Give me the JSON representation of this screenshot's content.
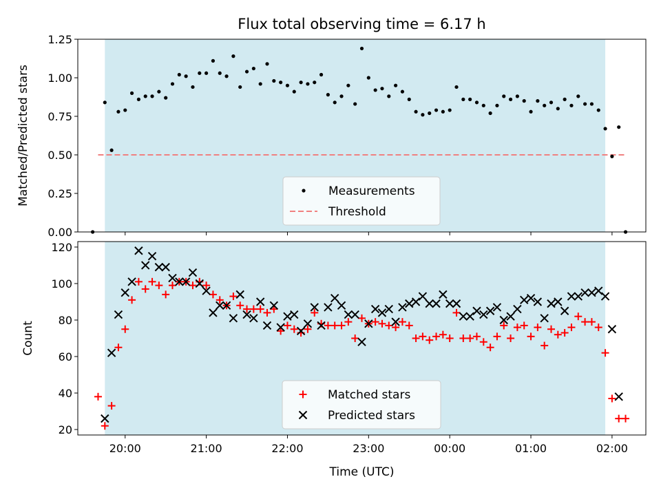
{
  "chart_data": [
    {
      "type": "scatter",
      "title": "Flux total observing time = 6.17 h",
      "xlabel": "",
      "ylabel": "Matched/Predicted stars",
      "xlim": [
        "19:25",
        "02:25"
      ],
      "ylim": [
        0,
        1.25
      ],
      "yticks": [
        "0.00",
        "0.25",
        "0.50",
        "0.75",
        "1.00",
        "1.25"
      ],
      "shaded_span": [
        "19:45",
        "01:55"
      ],
      "shade_color": "#add8e6",
      "legend_position": "lower center",
      "series": [
        {
          "name": "Measurements",
          "color": "#000000",
          "marker": "dot",
          "points": [
            [
              "19:36",
              0.0
            ],
            [
              "19:45",
              0.84
            ],
            [
              "19:50",
              0.53
            ],
            [
              "19:55",
              0.78
            ],
            [
              "20:00",
              0.79
            ],
            [
              "20:05",
              0.9
            ],
            [
              "20:10",
              0.86
            ],
            [
              "20:15",
              0.88
            ],
            [
              "20:20",
              0.88
            ],
            [
              "20:25",
              0.91
            ],
            [
              "20:30",
              0.87
            ],
            [
              "20:35",
              0.96
            ],
            [
              "20:40",
              1.02
            ],
            [
              "20:45",
              1.01
            ],
            [
              "20:50",
              0.94
            ],
            [
              "20:55",
              1.03
            ],
            [
              "21:00",
              1.03
            ],
            [
              "21:05",
              1.11
            ],
            [
              "21:10",
              1.03
            ],
            [
              "21:15",
              1.01
            ],
            [
              "21:20",
              1.14
            ],
            [
              "21:25",
              0.94
            ],
            [
              "21:30",
              1.04
            ],
            [
              "21:35",
              1.06
            ],
            [
              "21:40",
              0.96
            ],
            [
              "21:45",
              1.09
            ],
            [
              "21:50",
              0.98
            ],
            [
              "21:55",
              0.97
            ],
            [
              "22:00",
              0.95
            ],
            [
              "22:05",
              0.91
            ],
            [
              "22:10",
              0.97
            ],
            [
              "22:15",
              0.96
            ],
            [
              "22:20",
              0.97
            ],
            [
              "22:25",
              1.02
            ],
            [
              "22:30",
              0.89
            ],
            [
              "22:35",
              0.84
            ],
            [
              "22:40",
              0.88
            ],
            [
              "22:45",
              0.95
            ],
            [
              "22:50",
              0.83
            ],
            [
              "22:55",
              1.19
            ],
            [
              "23:00",
              1.0
            ],
            [
              "23:05",
              0.92
            ],
            [
              "23:10",
              0.93
            ],
            [
              "23:15",
              0.88
            ],
            [
              "23:20",
              0.95
            ],
            [
              "23:25",
              0.91
            ],
            [
              "23:30",
              0.86
            ],
            [
              "23:35",
              0.78
            ],
            [
              "23:40",
              0.76
            ],
            [
              "23:45",
              0.77
            ],
            [
              "23:50",
              0.79
            ],
            [
              "23:55",
              0.78
            ],
            [
              "00:00",
              0.79
            ],
            [
              "00:05",
              0.94
            ],
            [
              "00:10",
              0.86
            ],
            [
              "00:15",
              0.86
            ],
            [
              "00:20",
              0.84
            ],
            [
              "00:25",
              0.82
            ],
            [
              "00:30",
              0.77
            ],
            [
              "00:35",
              0.82
            ],
            [
              "00:40",
              0.88
            ],
            [
              "00:45",
              0.86
            ],
            [
              "00:50",
              0.88
            ],
            [
              "00:55",
              0.85
            ],
            [
              "01:00",
              0.78
            ],
            [
              "01:05",
              0.85
            ],
            [
              "01:10",
              0.82
            ],
            [
              "01:15",
              0.84
            ],
            [
              "01:20",
              0.8
            ],
            [
              "01:25",
              0.86
            ],
            [
              "01:30",
              0.82
            ],
            [
              "01:35",
              0.88
            ],
            [
              "01:40",
              0.83
            ],
            [
              "01:45",
              0.83
            ],
            [
              "01:50",
              0.79
            ],
            [
              "01:55",
              0.67
            ],
            [
              "02:00",
              0.49
            ],
            [
              "02:05",
              0.68
            ],
            [
              "02:10",
              0.0
            ]
          ]
        },
        {
          "name": "Threshold",
          "color": "#f08080",
          "style": "dashed",
          "x": [
            "19:40",
            "02:10"
          ],
          "y": [
            0.5,
            0.5
          ]
        }
      ]
    },
    {
      "type": "scatter",
      "title": "",
      "xlabel": "Time (UTC)",
      "ylabel": "Count",
      "xlim": [
        "19:25",
        "02:25"
      ],
      "ylim": [
        17,
        123
      ],
      "yticks": [
        "20",
        "40",
        "60",
        "80",
        "100",
        "120"
      ],
      "xticks": [
        "20:00",
        "21:00",
        "22:00",
        "23:00",
        "00:00",
        "01:00",
        "02:00"
      ],
      "shaded_span": [
        "19:45",
        "01:55"
      ],
      "shade_color": "#add8e6",
      "legend_position": "lower center",
      "series": [
        {
          "name": "Matched stars",
          "color": "#ff0000",
          "marker": "plus",
          "points": [
            [
              "19:40",
              38
            ],
            [
              "19:45",
              22
            ],
            [
              "19:50",
              33
            ],
            [
              "19:55",
              65
            ],
            [
              "20:00",
              75
            ],
            [
              "20:05",
              91
            ],
            [
              "20:10",
              101
            ],
            [
              "20:15",
              97
            ],
            [
              "20:20",
              101
            ],
            [
              "20:25",
              99
            ],
            [
              "20:30",
              94
            ],
            [
              "20:35",
              99
            ],
            [
              "20:40",
              101
            ],
            [
              "20:45",
              101
            ],
            [
              "20:50",
              99
            ],
            [
              "20:55",
              101
            ],
            [
              "21:00",
              99
            ],
            [
              "21:05",
              94
            ],
            [
              "21:10",
              91
            ],
            [
              "21:15",
              88
            ],
            [
              "21:20",
              93
            ],
            [
              "21:25",
              88
            ],
            [
              "21:30",
              86
            ],
            [
              "21:35",
              86
            ],
            [
              "21:40",
              86
            ],
            [
              "21:45",
              84
            ],
            [
              "21:50",
              86
            ],
            [
              "21:55",
              74
            ],
            [
              "22:00",
              77
            ],
            [
              "22:05",
              75
            ],
            [
              "22:10",
              73
            ],
            [
              "22:15",
              75
            ],
            [
              "22:20",
              84
            ],
            [
              "22:25",
              78
            ],
            [
              "22:30",
              77
            ],
            [
              "22:35",
              77
            ],
            [
              "22:40",
              77
            ],
            [
              "22:45",
              79
            ],
            [
              "22:50",
              70
            ],
            [
              "22:55",
              81
            ],
            [
              "23:00",
              78
            ],
            [
              "23:05",
              79
            ],
            [
              "23:10",
              78
            ],
            [
              "23:15",
              77
            ],
            [
              "23:20",
              76
            ],
            [
              "23:25",
              79
            ],
            [
              "23:30",
              77
            ],
            [
              "23:35",
              70
            ],
            [
              "23:40",
              71
            ],
            [
              "23:45",
              69
            ],
            [
              "23:50",
              71
            ],
            [
              "23:55",
              72
            ],
            [
              "00:00",
              70
            ],
            [
              "00:05",
              84
            ],
            [
              "00:10",
              70
            ],
            [
              "00:15",
              70
            ],
            [
              "00:20",
              71
            ],
            [
              "00:25",
              68
            ],
            [
              "00:30",
              65
            ],
            [
              "00:35",
              71
            ],
            [
              "00:40",
              77
            ],
            [
              "00:45",
              70
            ],
            [
              "00:50",
              76
            ],
            [
              "00:55",
              77
            ],
            [
              "01:00",
              71
            ],
            [
              "01:05",
              76
            ],
            [
              "01:10",
              66
            ],
            [
              "01:15",
              75
            ],
            [
              "01:20",
              72
            ],
            [
              "01:25",
              73
            ],
            [
              "01:30",
              76
            ],
            [
              "01:35",
              82
            ],
            [
              "01:40",
              79
            ],
            [
              "01:45",
              79
            ],
            [
              "01:50",
              76
            ],
            [
              "01:55",
              62
            ],
            [
              "02:00",
              37
            ],
            [
              "02:05",
              26
            ],
            [
              "02:10",
              26
            ]
          ]
        },
        {
          "name": "Predicted stars",
          "color": "#000000",
          "marker": "x",
          "points": [
            [
              "19:45",
              26
            ],
            [
              "19:50",
              62
            ],
            [
              "19:55",
              83
            ],
            [
              "20:00",
              95
            ],
            [
              "20:05",
              101
            ],
            [
              "20:10",
              118
            ],
            [
              "20:15",
              110
            ],
            [
              "20:20",
              115
            ],
            [
              "20:25",
              109
            ],
            [
              "20:30",
              109
            ],
            [
              "20:35",
              103
            ],
            [
              "20:40",
              101
            ],
            [
              "20:45",
              101
            ],
            [
              "20:50",
              106
            ],
            [
              "20:55",
              100
            ],
            [
              "21:00",
              96
            ],
            [
              "21:05",
              84
            ],
            [
              "21:10",
              88
            ],
            [
              "21:15",
              88
            ],
            [
              "21:20",
              81
            ],
            [
              "21:25",
              94
            ],
            [
              "21:30",
              83
            ],
            [
              "21:35",
              81
            ],
            [
              "21:40",
              90
            ],
            [
              "21:45",
              77
            ],
            [
              "21:50",
              88
            ],
            [
              "21:55",
              76
            ],
            [
              "22:00",
              82
            ],
            [
              "22:05",
              83
            ],
            [
              "22:10",
              74
            ],
            [
              "22:15",
              78
            ],
            [
              "22:20",
              87
            ],
            [
              "22:25",
              77
            ],
            [
              "22:30",
              87
            ],
            [
              "22:35",
              92
            ],
            [
              "22:40",
              88
            ],
            [
              "22:45",
              83
            ],
            [
              "22:50",
              83
            ],
            [
              "22:55",
              68
            ],
            [
              "23:00",
              78
            ],
            [
              "23:05",
              86
            ],
            [
              "23:10",
              84
            ],
            [
              "23:15",
              86
            ],
            [
              "23:20",
              79
            ],
            [
              "23:25",
              87
            ],
            [
              "23:30",
              89
            ],
            [
              "23:35",
              90
            ],
            [
              "23:40",
              93
            ],
            [
              "23:45",
              89
            ],
            [
              "23:50",
              89
            ],
            [
              "23:55",
              94
            ],
            [
              "00:00",
              89
            ],
            [
              "00:05",
              89
            ],
            [
              "00:10",
              82
            ],
            [
              "00:15",
              82
            ],
            [
              "00:20",
              85
            ],
            [
              "00:25",
              83
            ],
            [
              "00:30",
              85
            ],
            [
              "00:35",
              87
            ],
            [
              "00:40",
              80
            ],
            [
              "00:45",
              82
            ],
            [
              "00:50",
              86
            ],
            [
              "00:55",
              91
            ],
            [
              "01:00",
              92
            ],
            [
              "01:05",
              90
            ],
            [
              "01:10",
              81
            ],
            [
              "01:15",
              89
            ],
            [
              "01:20",
              90
            ],
            [
              "01:25",
              85
            ],
            [
              "01:30",
              93
            ],
            [
              "01:35",
              93
            ],
            [
              "01:40",
              95
            ],
            [
              "01:45",
              95
            ],
            [
              "01:50",
              96
            ],
            [
              "01:55",
              93
            ],
            [
              "02:00",
              75
            ],
            [
              "02:05",
              38
            ]
          ]
        }
      ]
    }
  ]
}
